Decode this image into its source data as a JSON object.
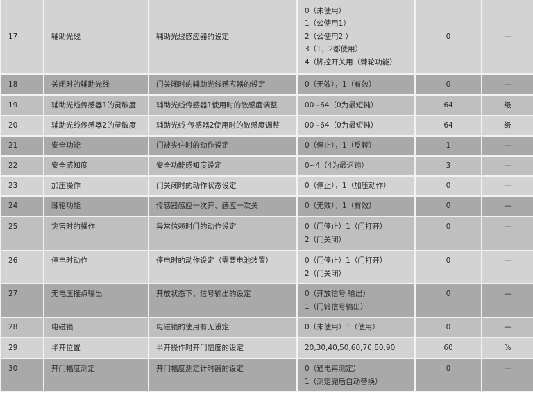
{
  "rows": [
    {
      "no": "17",
      "name": "辅助光线",
      "desc": "辅助光线感应器的设定",
      "range": [
        "0（未使用）",
        "1（公使用1）",
        "2（公使用2 ）",
        "3（1，2都使用）",
        "4（脚控开关用（棘轮功能）"
      ],
      "default": "0",
      "unit": "—",
      "shade": 0,
      "h": 108,
      "top": false
    },
    {
      "no": "18",
      "name": "关闭时的辅助光线",
      "desc": "门关闭时的辅助光线感应器的设定",
      "range": [
        "0（无效），1（有效）"
      ],
      "default": "0",
      "unit": "—",
      "shade": 1,
      "h": 30,
      "top": false
    },
    {
      "no": "19",
      "name": "辅助光线传感器1的灵敏度",
      "desc": "辅助光线传感器1使用时的敏感度调整",
      "range": [
        "00~64（0为最短钝）"
      ],
      "default": "64",
      "unit": "级",
      "shade": 2,
      "h": 30,
      "top": false
    },
    {
      "no": "20",
      "name": "辅助光线传感器2的灵敏度",
      "desc": "辅助光线 传感器2使用时的敏感度调整",
      "range": [
        "00~64（0为最短钝）"
      ],
      "default": "64",
      "unit": "级",
      "shade": 0,
      "h": 29,
      "top": false
    },
    {
      "no": "21",
      "name": "安全功能",
      "desc": "门被夹住时的动作设定",
      "range": [
        "0（停止），1（反转）"
      ],
      "default": "1",
      "unit": "—",
      "shade": 1,
      "h": 29,
      "top": false
    },
    {
      "no": "22",
      "name": "安全感知度",
      "desc": "安全功能感知度设定",
      "range": [
        "0~4（4为最迟钝）"
      ],
      "default": "3",
      "unit": "—",
      "shade": 2,
      "h": 29,
      "top": false
    },
    {
      "no": "23",
      "name": "加压操作",
      "desc": "门关闭时的动作状态设定",
      "range": [
        "0（停止），1（加压动作）"
      ],
      "default": "0",
      "unit": "—",
      "shade": 0,
      "h": 29,
      "top": false
    },
    {
      "no": "24",
      "name": "棘轮功能",
      "desc": "传感器感应一次开、感应一次关",
      "range": [
        "0（无效），1（有效）"
      ],
      "default": "0",
      "unit": "—",
      "shade": 1,
      "h": 29,
      "top": false
    },
    {
      "no": "25",
      "name": "灾害时的操作",
      "desc": "异常信赖时门的动作设定",
      "range": [
        "0（门停止）1（门打开）",
        "2（门关闭）"
      ],
      "default": "0",
      "unit": "—",
      "shade": 2,
      "h": 49,
      "top": true
    },
    {
      "no": "26",
      "name": "停电时动作",
      "desc": "停电时的动作设定（需要电池装置）",
      "range": [
        "0（门停止）1（门打开）",
        "2（门关闭）"
      ],
      "default": "0",
      "unit": "—",
      "shade": 0,
      "h": 48,
      "top": true
    },
    {
      "no": "27",
      "name": "无电压接点输出",
      "desc": "开放状态下，信号输出的设定",
      "range": [
        "0（开放信号 输出）",
        "1（门铃信号输出）"
      ],
      "default": "0",
      "unit": "—",
      "shade": 1,
      "h": 49,
      "top": true
    },
    {
      "no": "28",
      "name": "电磁锁",
      "desc": "电磁锁的使用有无设定",
      "range": [
        "0（未使用）1（使用）"
      ],
      "default": "0",
      "unit": "—",
      "shade": 2,
      "h": 29,
      "top": false
    },
    {
      "no": "29",
      "name": "半开位置",
      "desc": "半开操作时开门幅度的设定",
      "range": [
        "20,30,40,50,60,70,80,90"
      ],
      "default": "60",
      "unit": "%",
      "shade": 0,
      "h": 30,
      "top": false
    },
    {
      "no": "30",
      "name": "开门幅度测定",
      "desc": "开门幅度测定计时器的设定",
      "range": [
        "0（通电再测定）",
        "1（测定完后自动替换）"
      ],
      "default": "0",
      "unit": "—",
      "shade": 1,
      "h": 48,
      "top": true
    }
  ]
}
